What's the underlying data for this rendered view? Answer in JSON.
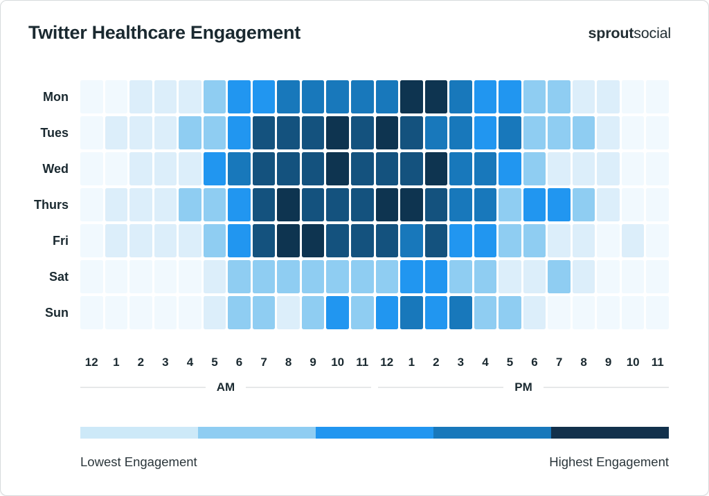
{
  "header": {
    "title": "Twitter Healthcare Engagement",
    "logo_bold": "sprout",
    "logo_light": "social"
  },
  "chart_data": {
    "type": "heatmap",
    "title": "Twitter Healthcare Engagement",
    "rows": [
      "Mon",
      "Tues",
      "Wed",
      "Thurs",
      "Fri",
      "Sat",
      "Sun"
    ],
    "columns": [
      "12",
      "1",
      "2",
      "3",
      "4",
      "5",
      "6",
      "7",
      "8",
      "9",
      "10",
      "11",
      "12",
      "1",
      "2",
      "3",
      "4",
      "5",
      "6",
      "7",
      "8",
      "9",
      "10",
      "11"
    ],
    "column_periods": [
      "AM",
      "PM"
    ],
    "value_scale": {
      "min": 1,
      "max": 7,
      "note": "relative engagement level encoded by cell color, 1 = lowest, 7 = highest"
    },
    "values": [
      [
        1,
        1,
        2,
        2,
        2,
        3,
        4,
        4,
        5,
        5,
        5,
        5,
        5,
        7,
        7,
        5,
        4,
        4,
        3,
        3,
        2,
        2,
        1,
        1
      ],
      [
        1,
        2,
        2,
        2,
        3,
        3,
        4,
        6,
        6,
        6,
        7,
        6,
        7,
        6,
        5,
        5,
        4,
        5,
        3,
        3,
        3,
        2,
        1,
        1
      ],
      [
        1,
        1,
        2,
        2,
        2,
        4,
        5,
        6,
        6,
        6,
        7,
        6,
        6,
        6,
        7,
        5,
        5,
        4,
        3,
        2,
        2,
        2,
        1,
        1
      ],
      [
        1,
        2,
        2,
        2,
        3,
        3,
        4,
        6,
        7,
        6,
        6,
        6,
        7,
        7,
        6,
        5,
        5,
        3,
        4,
        4,
        3,
        2,
        1,
        1
      ],
      [
        1,
        2,
        2,
        2,
        2,
        3,
        4,
        6,
        7,
        7,
        6,
        6,
        6,
        5,
        6,
        4,
        4,
        3,
        3,
        2,
        2,
        1,
        2,
        1
      ],
      [
        1,
        1,
        1,
        1,
        1,
        2,
        3,
        3,
        3,
        3,
        3,
        3,
        3,
        4,
        4,
        3,
        3,
        2,
        2,
        3,
        2,
        1,
        1,
        1
      ],
      [
        1,
        1,
        1,
        1,
        1,
        2,
        3,
        3,
        2,
        3,
        4,
        3,
        4,
        5,
        4,
        5,
        3,
        3,
        2,
        1,
        1,
        1,
        1,
        1
      ]
    ],
    "palette": [
      "#F1F9FE",
      "#DCEEFA",
      "#8FCDF2",
      "#2196F0",
      "#1878BB",
      "#14527E",
      "#0E3450"
    ],
    "legend": {
      "colors": [
        "#CDE9F8",
        "#8FCDF2",
        "#2196F0",
        "#1878BB",
        "#12314C"
      ],
      "min_label": "Lowest Engagement",
      "max_label": "Highest Engagement"
    }
  }
}
